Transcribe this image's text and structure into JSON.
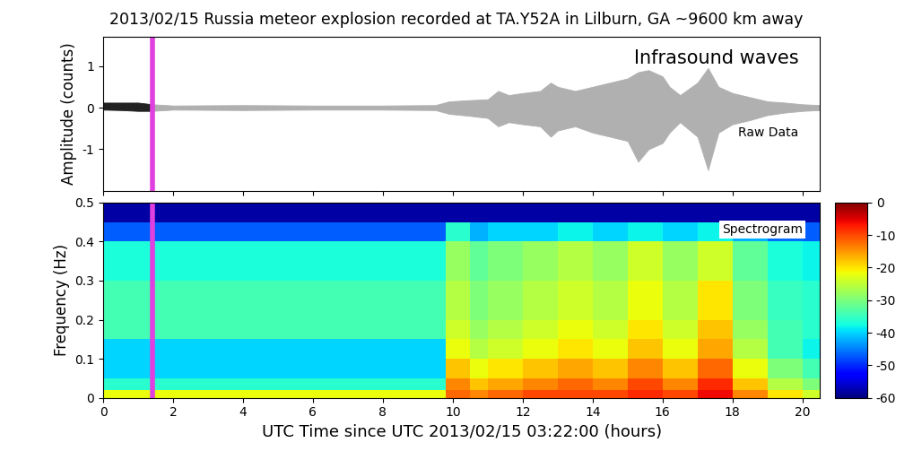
{
  "chart_data": [
    {
      "type": "area",
      "title": "2013/02/15 Russia meteor explosion recorded at TA.Y52A in Lilburn, GA ~9600 km away",
      "ylabel": "Amplitude (counts)",
      "annotations": [
        "Infrasound waves",
        "Raw Data"
      ],
      "series": [
        {
          "color": "#222222",
          "x": [
            0,
            0.5,
            1.0,
            1.4
          ],
          "high": [
            0.12,
            0.12,
            0.12,
            0.08
          ],
          "low": [
            -0.05,
            -0.06,
            -0.08,
            -0.08
          ]
        },
        {
          "color": "#b0b0b0",
          "x": [
            1.4,
            2,
            4,
            6,
            8,
            9.5,
            9.9,
            10.5,
            11,
            11.3,
            11.6,
            12,
            12.5,
            12.8,
            13,
            13.5,
            14,
            14.5,
            15,
            15.3,
            15.6,
            16,
            16.2,
            16.5,
            17,
            17.3,
            17.6,
            18,
            18.5,
            19,
            19.5,
            20,
            20.5
          ],
          "high": [
            0.08,
            0.05,
            0.06,
            0.05,
            0.05,
            0.06,
            0.15,
            0.18,
            0.2,
            0.4,
            0.3,
            0.35,
            0.4,
            0.6,
            0.5,
            0.4,
            0.5,
            0.6,
            0.7,
            0.85,
            0.9,
            0.75,
            0.5,
            0.3,
            0.6,
            0.95,
            0.5,
            0.35,
            0.25,
            0.15,
            0.12,
            0.08,
            0.06
          ],
          "low": [
            -0.08,
            -0.05,
            -0.06,
            -0.05,
            -0.05,
            -0.06,
            -0.15,
            -0.2,
            -0.25,
            -0.45,
            -0.35,
            -0.4,
            -0.45,
            -0.7,
            -0.55,
            -0.45,
            -0.6,
            -0.7,
            -0.8,
            -1.3,
            -1.0,
            -0.85,
            -0.6,
            -0.35,
            -0.7,
            -1.5,
            -0.6,
            -0.4,
            -0.3,
            -0.18,
            -0.12,
            -0.08,
            -0.06
          ]
        }
      ],
      "xlim": [
        0,
        20.5
      ],
      "xticks": [
        0,
        2,
        4,
        6,
        8,
        10,
        12,
        14,
        16,
        18,
        20
      ],
      "ylim": [
        -2,
        1.7
      ],
      "yticks": [
        -1,
        0,
        1
      ],
      "tick_labels": "y",
      "vline": {
        "x": 1.4,
        "color": "#e040e0"
      }
    },
    {
      "type": "heatmap",
      "xlabel": "UTC Time since UTC 2013/02/15 03:22:00 (hours)",
      "ylabel": "Frequency (Hz)",
      "annotations": [
        "Spectrogram"
      ],
      "x_edges": [
        0,
        1,
        2,
        3,
        4,
        5,
        6,
        7,
        8,
        9,
        9.8,
        10.5,
        11,
        12,
        13,
        14,
        15,
        16,
        17,
        18,
        19,
        20,
        20.5
      ],
      "y_edges": [
        0,
        0.02,
        0.05,
        0.1,
        0.15,
        0.2,
        0.3,
        0.4,
        0.45,
        0.5
      ],
      "cells": [
        [
          -22,
          -22,
          -22,
          -22,
          -22,
          -22,
          -22,
          -22,
          -22,
          -22,
          -12,
          -14,
          -12,
          -10,
          -10,
          -10,
          -8,
          -10,
          -6,
          -14,
          -20,
          -24
        ],
        [
          -36,
          -36,
          -36,
          -36,
          -36,
          -36,
          -36,
          -36,
          -36,
          -36,
          -14,
          -18,
          -16,
          -14,
          -12,
          -14,
          -10,
          -14,
          -8,
          -18,
          -26,
          -30
        ],
        [
          -40,
          -40,
          -40,
          -40,
          -40,
          -40,
          -40,
          -40,
          -40,
          -40,
          -18,
          -22,
          -20,
          -18,
          -16,
          -18,
          -14,
          -18,
          -12,
          -22,
          -30,
          -34
        ],
        [
          -40,
          -40,
          -40,
          -40,
          -40,
          -40,
          -40,
          -40,
          -40,
          -40,
          -22,
          -26,
          -24,
          -22,
          -20,
          -22,
          -18,
          -22,
          -16,
          -26,
          -34,
          -38
        ],
        [
          -34,
          -34,
          -34,
          -34,
          -34,
          -34,
          -34,
          -34,
          -34,
          -34,
          -24,
          -28,
          -26,
          -24,
          -22,
          -24,
          -20,
          -24,
          -18,
          -28,
          -34,
          -36
        ],
        [
          -34,
          -34,
          -34,
          -34,
          -34,
          -34,
          -34,
          -34,
          -34,
          -34,
          -26,
          -30,
          -28,
          -26,
          -24,
          -26,
          -22,
          -26,
          -20,
          -30,
          -35,
          -36
        ],
        [
          -37,
          -37,
          -37,
          -37,
          -37,
          -37,
          -37,
          -37,
          -37,
          -37,
          -28,
          -32,
          -30,
          -28,
          -26,
          -28,
          -24,
          -28,
          -24,
          -32,
          -37,
          -38
        ],
        [
          -47,
          -47,
          -47,
          -47,
          -47,
          -47,
          -47,
          -47,
          -47,
          -47,
          -36,
          -42,
          -40,
          -40,
          -38,
          -40,
          -38,
          -40,
          -38,
          -42,
          -46,
          -47
        ],
        [
          -58,
          -58,
          -58,
          -58,
          -58,
          -58,
          -58,
          -58,
          -58,
          -58,
          -58,
          -58,
          -58,
          -58,
          -58,
          -58,
          -58,
          -58,
          -58,
          -58,
          -58,
          -58
        ]
      ],
      "colorbar": {
        "range": [
          -60,
          0
        ],
        "ticks": [
          -60,
          -50,
          -40,
          -30,
          -20,
          -10,
          0
        ]
      },
      "xlim": [
        0,
        20.5
      ],
      "xticks": [
        0,
        2,
        4,
        6,
        8,
        10,
        12,
        14,
        16,
        18,
        20
      ],
      "ylim": [
        0,
        0.5
      ],
      "yticks": [
        0,
        0.1,
        0.2,
        0.3,
        0.4,
        0.5
      ],
      "vline": {
        "x": 1.4,
        "color": "#e040e0"
      }
    }
  ]
}
